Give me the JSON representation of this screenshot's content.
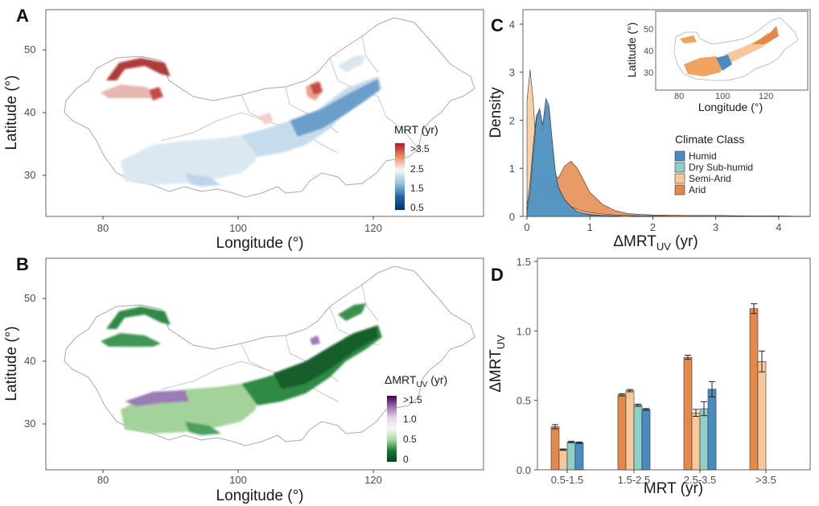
{
  "panels": {
    "A": {
      "label": "A",
      "xlabel": "Longitude (°)",
      "ylabel": "Latitude (°)",
      "xticks": [
        "80",
        "100",
        "120"
      ],
      "yticks": [
        "30",
        "40",
        "50"
      ],
      "legend": {
        "title": "MRT (yr)",
        "labels": [
          ">3.5",
          "2.5",
          "1.5",
          "0.5"
        ],
        "colors": [
          "#b2182b",
          "#ef8a62",
          "#f7f7f7",
          "#92c5de",
          "#2166ac",
          "#053061"
        ]
      }
    },
    "B": {
      "label": "B",
      "xlabel": "Longitude (°)",
      "ylabel": "Latitude (°)",
      "xticks": [
        "80",
        "100",
        "120"
      ],
      "yticks": [
        "30",
        "40",
        "50"
      ],
      "legend": {
        "title_main": "ΔMRT",
        "title_sub": "UV",
        "title_unit": " (yr)",
        "labels": [
          ">1.5",
          "1.0",
          "0.5",
          "0"
        ],
        "colors": [
          "#40004b",
          "#9970ab",
          "#e7d4e8",
          "#f7f7f7",
          "#a6dba0",
          "#1b7837",
          "#00441b"
        ]
      }
    },
    "C": {
      "label": "C",
      "xlabel_main": "ΔMRT",
      "xlabel_sub": "UV",
      "xlabel_unit": " (yr)",
      "ylabel": "Density",
      "legend_title": "Climate Class",
      "inset": {
        "xlabel": "Longitude (°)",
        "ylabel": "Latitude (°)",
        "xticks": [
          "80",
          "100",
          "120"
        ],
        "yticks": [
          "30",
          "40",
          "50"
        ]
      }
    },
    "D": {
      "label": "D",
      "xlabel": "MRT (yr)",
      "ylabel_main": "ΔMRT",
      "ylabel_sub": "UV"
    }
  },
  "climate_classes": [
    {
      "name": "Humid",
      "color": "#4a8cc2"
    },
    {
      "name": "Dry Sub-humid",
      "color": "#8ecfc9"
    },
    {
      "name": "Semi-Arid",
      "color": "#f7c99a"
    },
    {
      "name": "Arid",
      "color": "#e5894b"
    }
  ],
  "chart_data": [
    {
      "panel": "C",
      "type": "area",
      "title": "",
      "xlabel": "ΔMRT_UV (yr)",
      "ylabel": "Density",
      "xlim": [
        0,
        4.5
      ],
      "ylim": [
        0,
        4.2
      ],
      "xticks": [
        0,
        1,
        2,
        3,
        4
      ],
      "yticks": [
        0,
        1,
        2,
        3,
        4
      ],
      "grid": false,
      "legend": "center-right",
      "x": [
        0,
        0.05,
        0.1,
        0.15,
        0.2,
        0.25,
        0.3,
        0.35,
        0.4,
        0.45,
        0.5,
        0.6,
        0.7,
        0.8,
        0.9,
        1.0,
        1.2,
        1.4,
        1.6,
        1.8,
        2.0,
        2.5,
        3.0,
        3.5,
        4.0,
        4.5
      ],
      "series": [
        {
          "name": "Semi-Arid",
          "values": [
            2.4,
            3.05,
            2.4,
            1.3,
            0.8,
            0.6,
            0.5,
            0.45,
            0.4,
            0.35,
            0.3,
            0.25,
            0.2,
            0.15,
            0.1,
            0.08,
            0.05,
            0.03,
            0.02,
            0.01,
            0.01,
            0,
            0,
            0,
            0,
            0
          ]
        },
        {
          "name": "Dry Sub-humid",
          "values": [
            0.2,
            0.7,
            1.5,
            2.1,
            2.2,
            1.8,
            2.3,
            2.2,
            1.5,
            0.9,
            0.6,
            0.35,
            0.2,
            0.1,
            0.06,
            0.04,
            0.02,
            0.01,
            0,
            0,
            0,
            0,
            0,
            0,
            0,
            0
          ]
        },
        {
          "name": "Humid",
          "values": [
            0.1,
            0.5,
            1.3,
            2.0,
            2.25,
            1.9,
            2.45,
            2.3,
            1.6,
            0.95,
            0.6,
            0.35,
            0.2,
            0.1,
            0.06,
            0.03,
            0.02,
            0.01,
            0,
            0,
            0,
            0,
            0,
            0,
            0,
            0
          ]
        },
        {
          "name": "Arid",
          "values": [
            0.3,
            0.6,
            0.75,
            0.7,
            0.75,
            0.85,
            0.8,
            0.85,
            0.9,
            0.85,
            0.8,
            1.05,
            1.15,
            1.0,
            0.75,
            0.5,
            0.25,
            0.12,
            0.06,
            0.04,
            0.03,
            0.02,
            0.02,
            0.01,
            0.01,
            0
          ]
        }
      ]
    },
    {
      "panel": "D",
      "type": "bar",
      "title": "",
      "xlabel": "MRT (yr)",
      "ylabel": "ΔMRT_UV",
      "ylim": [
        0,
        1.5
      ],
      "yticks": [
        0.0,
        0.5,
        1.0,
        1.5
      ],
      "grid": false,
      "categories": [
        "0.5-1.5",
        "1.5-2.5",
        "2.5-3.5",
        ">3.5"
      ],
      "series": [
        {
          "name": "Arid",
          "values": [
            0.31,
            0.54,
            0.81,
            1.16
          ],
          "errors": [
            0.015,
            0.008,
            0.015,
            0.035
          ]
        },
        {
          "name": "Semi-Arid",
          "values": [
            0.145,
            0.57,
            0.41,
            0.78
          ],
          "errors": [
            0.005,
            0.008,
            0.025,
            0.075
          ]
        },
        {
          "name": "Dry Sub-humid",
          "values": [
            0.2,
            0.465,
            0.44,
            null
          ],
          "errors": [
            0.005,
            0.008,
            0.05,
            null
          ]
        },
        {
          "name": "Humid",
          "values": [
            0.195,
            0.435,
            0.58,
            null
          ],
          "errors": [
            0.005,
            0.006,
            0.055,
            null
          ]
        }
      ]
    }
  ]
}
